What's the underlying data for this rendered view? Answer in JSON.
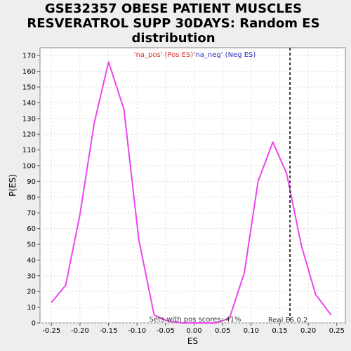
{
  "chart_data": {
    "type": "line",
    "title_lines": [
      "GSE32357 OBESE PATIENT MUSCLES",
      "RESVERATROL SUPP 30DAYS: Random ES",
      "distribution"
    ],
    "xlabel": "ES",
    "ylabel": "P(ES)",
    "xlim": [
      -0.27,
      0.265
    ],
    "ylim": [
      0,
      175
    ],
    "x_ticks": [
      -0.25,
      -0.2,
      -0.15,
      -0.1,
      -0.05,
      0.0,
      0.05,
      0.1,
      0.15,
      0.2,
      0.25
    ],
    "x_tick_labels": [
      "-0.25",
      "-0.20",
      "-0.15",
      "-0.10",
      "-0.05",
      "0.00",
      "0.05",
      "0.10",
      "0.15",
      "0.20",
      "0.25"
    ],
    "y_ticks": [
      0,
      10,
      20,
      30,
      40,
      50,
      60,
      70,
      80,
      90,
      100,
      110,
      120,
      130,
      140,
      150,
      160,
      170
    ],
    "y_tick_labels": [
      "0",
      "10",
      "20",
      "30",
      "40",
      "50",
      "60",
      "70",
      "80",
      "90",
      "100",
      "110",
      "120",
      "130",
      "140",
      "150",
      "160",
      "170"
    ],
    "grid": true,
    "legend": [
      {
        "label": "'na_pos' (Pos ES)",
        "color": "#e03030"
      },
      {
        "label": "'na_neg' (Neg ES)",
        "color": "#3030c0"
      }
    ],
    "series": [
      {
        "color": "#ee44ee",
        "x": [
          -0.25,
          -0.225,
          -0.2,
          -0.175,
          -0.15,
          -0.123,
          -0.097,
          -0.07,
          -0.045,
          -0.02,
          0.01,
          0.038,
          0.062,
          0.088,
          0.112,
          0.138,
          0.162,
          0.188,
          0.213,
          0.24
        ],
        "y": [
          13,
          24,
          69,
          127,
          166,
          136,
          53,
          5,
          1,
          0,
          0,
          0,
          3,
          32,
          90,
          115,
          95,
          49,
          18,
          5
        ]
      }
    ],
    "real_es": 0.168,
    "real_es_label": "Real ES 0.2",
    "pos_scores_text": "Sets with pos scores: 41%"
  }
}
